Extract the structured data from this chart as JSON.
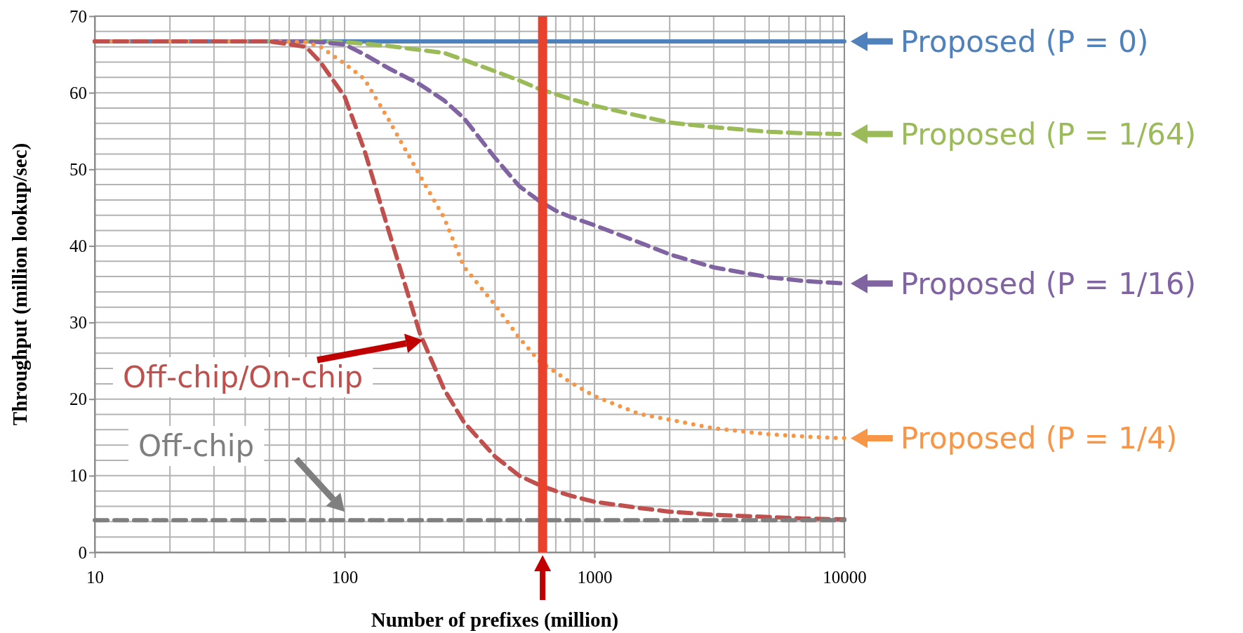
{
  "chart_data": {
    "type": "line",
    "xlabel": "Number of prefixes  (million)",
    "ylabel": "Throughput (million lookup/sec)",
    "log": "x",
    "grid": true,
    "legend": "right",
    "x": [
      10,
      20,
      30,
      50,
      70,
      80,
      100,
      120,
      150,
      200,
      250,
      300,
      400,
      500,
      600,
      700,
      800,
      1000,
      1500,
      2000,
      3000,
      5000,
      7000,
      10000
    ],
    "xlim": [
      10,
      10000
    ],
    "xticks": [
      10,
      {
        "value": 20,
        "label": null
      },
      {
        "value": 30,
        "label": null
      },
      {
        "value": 40,
        "label": null
      },
      {
        "value": 50,
        "label": null
      },
      {
        "value": 60,
        "label": null
      },
      {
        "value": 70,
        "label": null
      },
      {
        "value": 80,
        "label": null
      },
      {
        "value": 90,
        "label": null
      },
      100,
      {
        "value": 200,
        "label": null
      },
      {
        "value": 300,
        "label": null
      },
      {
        "value": 400,
        "label": null
      },
      {
        "value": 500,
        "label": null
      },
      {
        "value": 700,
        "label": null
      },
      {
        "value": 800,
        "label": null
      },
      {
        "value": 900,
        "label": null
      },
      1000,
      {
        "value": 2000,
        "label": null
      },
      {
        "value": 3000,
        "label": null
      },
      {
        "value": 4000,
        "label": null
      },
      {
        "value": 5000,
        "label": null
      },
      {
        "value": 6000,
        "label": null
      },
      {
        "value": 7000,
        "label": null
      },
      {
        "value": 8000,
        "label": null
      },
      {
        "value": 9000,
        "label": null
      },
      10000
    ],
    "ylim": [
      0,
      70
    ],
    "yticks": [
      0,
      {
        "value": 2,
        "label": null
      },
      {
        "value": 4,
        "label": null
      },
      {
        "value": 6,
        "label": null
      },
      {
        "value": 8,
        "label": null
      },
      10,
      {
        "value": 12,
        "label": null
      },
      {
        "value": 14,
        "label": null
      },
      {
        "value": 16,
        "label": null
      },
      {
        "value": 18,
        "label": null
      },
      20,
      {
        "value": 22,
        "label": null
      },
      {
        "value": 24,
        "label": null
      },
      {
        "value": 26,
        "label": null
      },
      {
        "value": 28,
        "label": null
      },
      30,
      {
        "value": 32,
        "label": null
      },
      {
        "value": 34,
        "label": null
      },
      {
        "value": 36,
        "label": null
      },
      {
        "value": 38,
        "label": null
      },
      40,
      {
        "value": 42,
        "label": null
      },
      {
        "value": 44,
        "label": null
      },
      {
        "value": 46,
        "label": null
      },
      {
        "value": 48,
        "label": null
      },
      50,
      {
        "value": 52,
        "label": null
      },
      {
        "value": 54,
        "label": null
      },
      {
        "value": 56,
        "label": null
      },
      {
        "value": 58,
        "label": null
      },
      60,
      {
        "value": 62,
        "label": null
      },
      {
        "value": 64,
        "label": null
      },
      {
        "value": 66,
        "label": null
      },
      {
        "value": 68,
        "label": null
      },
      70
    ],
    "ref_lines": [
      {
        "axis": "x",
        "value": 620,
        "color": "#e8412c",
        "line_style": "solid"
      }
    ],
    "series": [
      {
        "name": "Proposed (P = 0)",
        "color": "#4f81bd",
        "line_style": "solid",
        "values": [
          66.7,
          66.7,
          66.7,
          66.7,
          66.7,
          66.7,
          66.7,
          66.7,
          66.7,
          66.7,
          66.7,
          66.7,
          66.7,
          66.7,
          66.7,
          66.7,
          66.7,
          66.7,
          66.7,
          66.7,
          66.7,
          66.7,
          66.7,
          66.7
        ]
      },
      {
        "name": "Proposed (P = 1/64)",
        "color": "#9bbb59",
        "line_style": "dashed",
        "values": [
          null,
          null,
          null,
          66.7,
          66.7,
          66.7,
          66.6,
          66.4,
          66.1,
          65.6,
          65.2,
          64.3,
          62.8,
          61.6,
          60.5,
          59.8,
          59.2,
          58.3,
          57,
          56.1,
          55.5,
          54.9,
          54.7,
          54.6
        ]
      },
      {
        "name": "Proposed (P = 1/16)",
        "color": "#8064a2",
        "line_style": "dashed",
        "values": [
          66.7,
          66.7,
          66.7,
          66.7,
          66.7,
          66.6,
          66.3,
          65,
          63.2,
          61.1,
          59,
          56.7,
          51.5,
          47.8,
          45.9,
          44.6,
          43.8,
          42.7,
          40.5,
          38.9,
          37.2,
          35.9,
          35.4,
          35.1
        ]
      },
      {
        "name": "Proposed (P = 1/4)",
        "color": "#f79646",
        "line_style": "dotted",
        "values": [
          66.7,
          66.7,
          66.7,
          66.7,
          66.6,
          66,
          63.8,
          61.8,
          56.5,
          49.2,
          43.7,
          37.3,
          32.3,
          28,
          25,
          23.5,
          22.2,
          20.4,
          18.1,
          17.3,
          16.2,
          15.4,
          15.1,
          14.9
        ]
      },
      {
        "name": "Off-chip/On-chip",
        "color": "#c0504d",
        "line_style": "dashed",
        "values": [
          66.7,
          66.7,
          66.7,
          66.7,
          66,
          64,
          59.5,
          52.5,
          42,
          28.6,
          21.3,
          17,
          12.5,
          10,
          8.8,
          8,
          7.4,
          6.6,
          5.8,
          5.3,
          4.9,
          4.6,
          4.4,
          4.3
        ]
      },
      {
        "name": "Off-chip",
        "color": "#7f7f7f",
        "line_style": "dashed",
        "values": [
          4.2,
          4.2,
          4.2,
          4.2,
          4.2,
          4.2,
          4.2,
          4.2,
          4.2,
          4.2,
          4.2,
          4.2,
          4.2,
          4.2,
          4.2,
          4.2,
          4.2,
          4.2,
          4.2,
          4.2,
          4.2,
          4.2,
          4.2,
          4.2
        ]
      }
    ]
  }
}
